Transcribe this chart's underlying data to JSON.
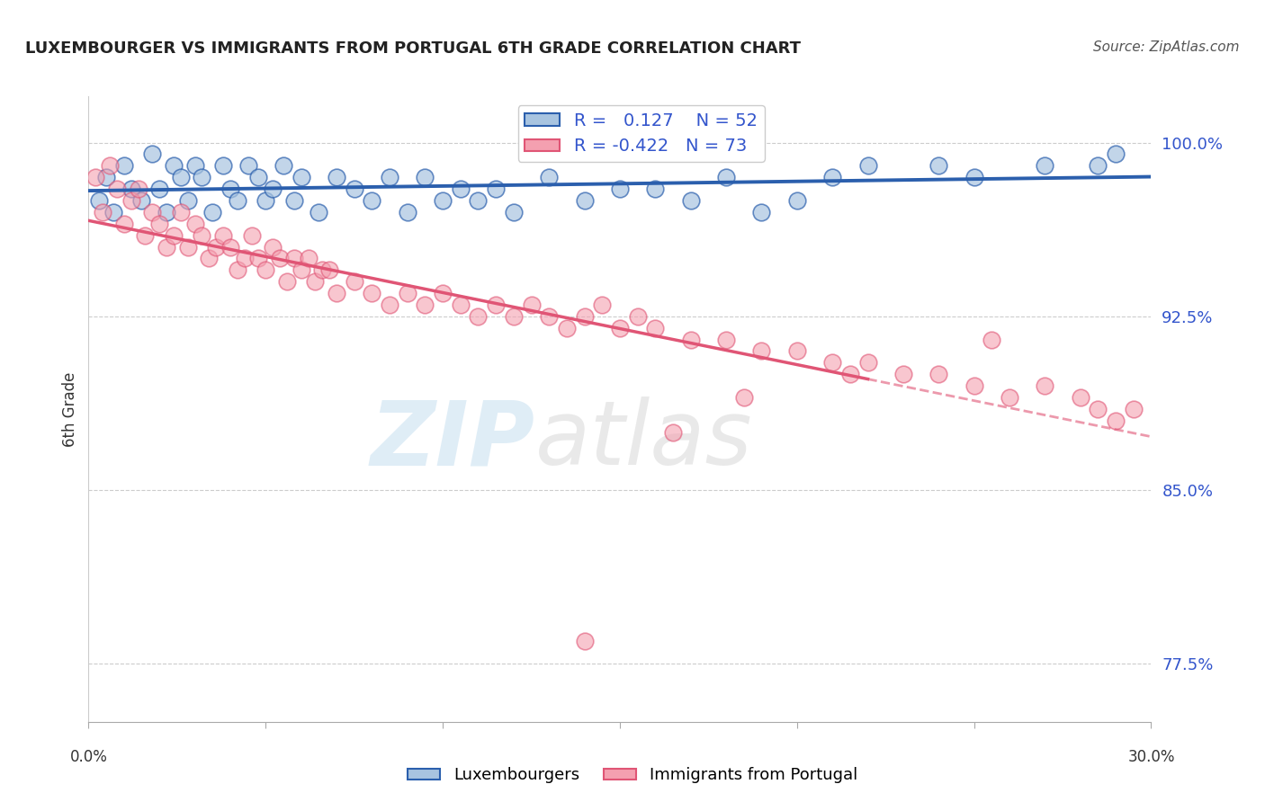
{
  "title": "LUXEMBOURGER VS IMMIGRANTS FROM PORTUGAL 6TH GRADE CORRELATION CHART",
  "source": "Source: ZipAtlas.com",
  "ylabel": "6th Grade",
  "right_yticks": [
    100.0,
    92.5,
    85.0,
    77.5
  ],
  "blue_R": 0.127,
  "blue_N": 52,
  "pink_R": -0.422,
  "pink_N": 73,
  "blue_legend": "Luxembourgers",
  "pink_legend": "Immigrants from Portugal",
  "blue_color": "#a8c4e0",
  "blue_line_color": "#2b5fad",
  "pink_color": "#f4a0b0",
  "pink_line_color": "#e05575",
  "watermark_zip": "ZIP",
  "watermark_atlas": "atlas",
  "blue_scatter_x": [
    0.3,
    0.5,
    0.7,
    1.0,
    1.2,
    1.5,
    1.8,
    2.0,
    2.2,
    2.4,
    2.6,
    2.8,
    3.0,
    3.2,
    3.5,
    3.8,
    4.0,
    4.2,
    4.5,
    4.8,
    5.0,
    5.2,
    5.5,
    5.8,
    6.0,
    6.5,
    7.0,
    7.5,
    8.0,
    8.5,
    9.0,
    9.5,
    10.0,
    10.5,
    11.0,
    11.5,
    12.0,
    13.0,
    14.0,
    15.0,
    16.0,
    17.0,
    18.0,
    19.0,
    20.0,
    21.0,
    22.0,
    24.0,
    25.0,
    27.0,
    28.5,
    29.0
  ],
  "blue_scatter_y": [
    97.5,
    98.5,
    97.0,
    99.0,
    98.0,
    97.5,
    99.5,
    98.0,
    97.0,
    99.0,
    98.5,
    97.5,
    99.0,
    98.5,
    97.0,
    99.0,
    98.0,
    97.5,
    99.0,
    98.5,
    97.5,
    98.0,
    99.0,
    97.5,
    98.5,
    97.0,
    98.5,
    98.0,
    97.5,
    98.5,
    97.0,
    98.5,
    97.5,
    98.0,
    97.5,
    98.0,
    97.0,
    98.5,
    97.5,
    98.0,
    98.0,
    97.5,
    98.5,
    97.0,
    97.5,
    98.5,
    99.0,
    99.0,
    98.5,
    99.0,
    99.0,
    99.5
  ],
  "pink_scatter_x": [
    0.2,
    0.4,
    0.6,
    0.8,
    1.0,
    1.2,
    1.4,
    1.6,
    1.8,
    2.0,
    2.2,
    2.4,
    2.6,
    2.8,
    3.0,
    3.2,
    3.4,
    3.6,
    3.8,
    4.0,
    4.2,
    4.4,
    4.6,
    4.8,
    5.0,
    5.2,
    5.4,
    5.6,
    5.8,
    6.0,
    6.2,
    6.4,
    6.6,
    6.8,
    7.0,
    7.5,
    8.0,
    8.5,
    9.0,
    9.5,
    10.0,
    10.5,
    11.0,
    11.5,
    12.0,
    12.5,
    13.0,
    13.5,
    14.0,
    14.5,
    15.0,
    15.5,
    16.0,
    17.0,
    18.0,
    19.0,
    20.0,
    21.0,
    22.0,
    23.0,
    24.0,
    25.0,
    26.0,
    27.0,
    28.0,
    28.5,
    29.0,
    29.5,
    14.0,
    16.5,
    18.5,
    21.5,
    25.5
  ],
  "pink_scatter_y": [
    98.5,
    97.0,
    99.0,
    98.0,
    96.5,
    97.5,
    98.0,
    96.0,
    97.0,
    96.5,
    95.5,
    96.0,
    97.0,
    95.5,
    96.5,
    96.0,
    95.0,
    95.5,
    96.0,
    95.5,
    94.5,
    95.0,
    96.0,
    95.0,
    94.5,
    95.5,
    95.0,
    94.0,
    95.0,
    94.5,
    95.0,
    94.0,
    94.5,
    94.5,
    93.5,
    94.0,
    93.5,
    93.0,
    93.5,
    93.0,
    93.5,
    93.0,
    92.5,
    93.0,
    92.5,
    93.0,
    92.5,
    92.0,
    92.5,
    93.0,
    92.0,
    92.5,
    92.0,
    91.5,
    91.5,
    91.0,
    91.0,
    90.5,
    90.5,
    90.0,
    90.0,
    89.5,
    89.0,
    89.5,
    89.0,
    88.5,
    88.0,
    88.5,
    78.5,
    87.5,
    89.0,
    90.0,
    91.5
  ],
  "xlim": [
    0,
    30
  ],
  "ylim": [
    75,
    102
  ],
  "pink_dash_split": 22.0
}
